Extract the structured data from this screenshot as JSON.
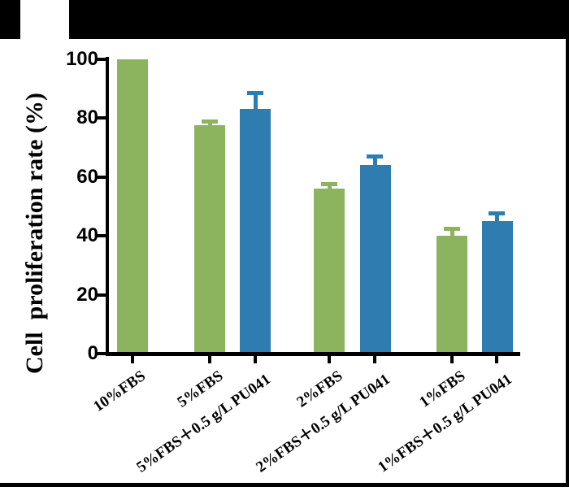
{
  "figure": {
    "top_bar_color": "#000000",
    "frame_color": "#000000",
    "background_color": "#ffffff"
  },
  "chart_data": {
    "type": "bar",
    "title": "",
    "xlabel": "",
    "ylabel": "Cell  proliferation rate (%)",
    "ylim": [
      0,
      100
    ],
    "yticks": [
      0,
      20,
      40,
      60,
      80,
      100
    ],
    "grid": false,
    "legend": "none",
    "categories": [
      "10%FBS",
      "5%FBS",
      "5%FBS＋0.5 g/L PU041",
      "2%FBS",
      "2%FBS＋0.5 g/L PU041",
      "1%FBS",
      "1%FBS＋0.5 g/L PU041"
    ],
    "values": [
      100,
      77.5,
      83,
      56,
      64,
      40,
      45
    ],
    "errors": [
      0,
      2,
      6,
      2.3,
      3.7,
      3,
      3.4
    ],
    "bar_color_keys": [
      "green",
      "green",
      "blue",
      "green",
      "blue",
      "green",
      "blue"
    ],
    "colors": {
      "green": "#8CB45E",
      "blue": "#2E7CB0",
      "axis": "#000000"
    }
  }
}
